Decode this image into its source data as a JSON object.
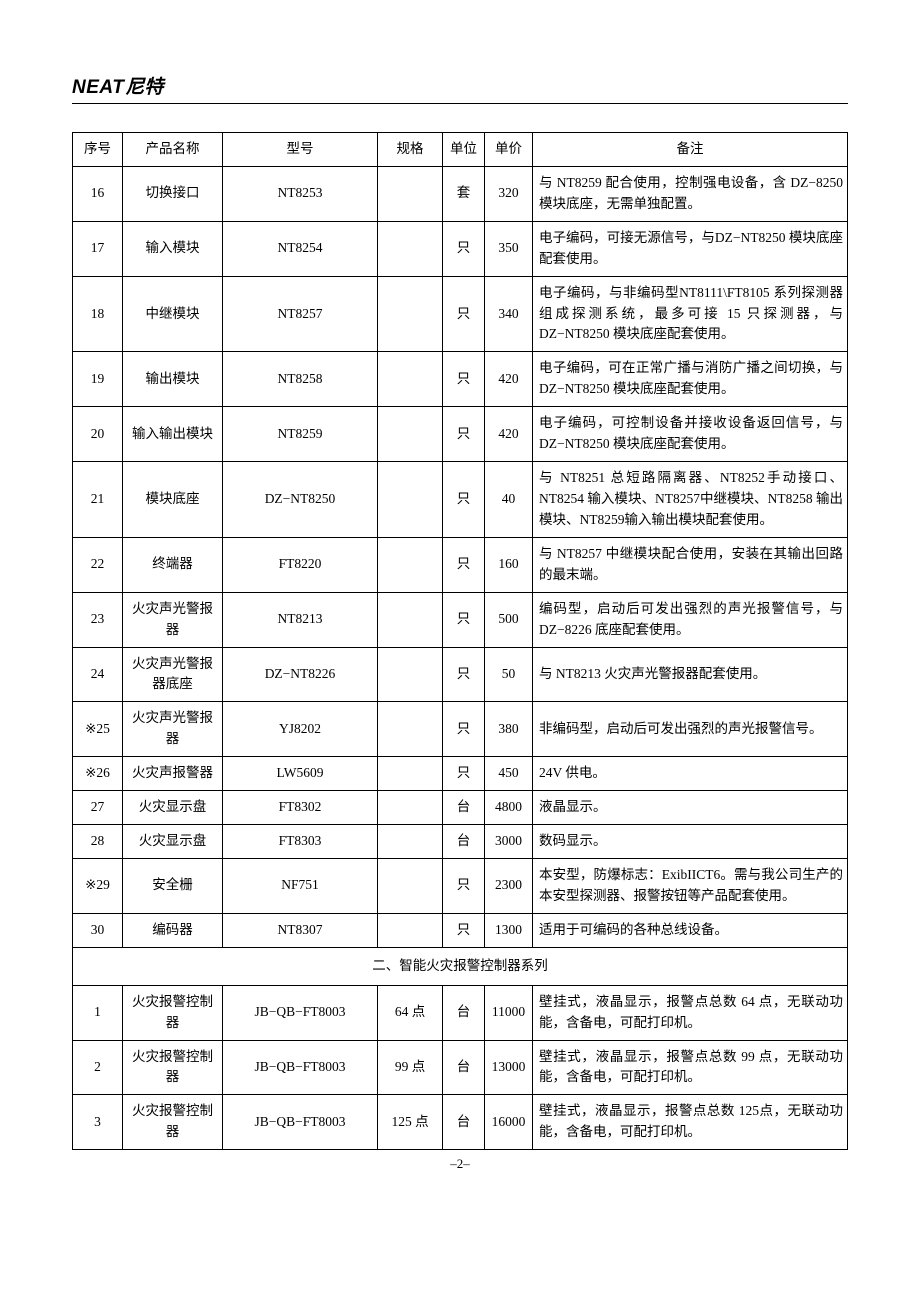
{
  "logo": {
    "en": "NEAT",
    "cn": "尼特"
  },
  "page_number": "–2–",
  "headers": {
    "seq": "序号",
    "name": "产品名称",
    "model": "型号",
    "spec": "规格",
    "unit": "单位",
    "price": "单价",
    "remark": "备注"
  },
  "section_title": "二、智能火灾报警控制器系列",
  "rows_a": [
    {
      "seq": "16",
      "name": "切换接口",
      "model": "NT8253",
      "spec": "",
      "unit": "套",
      "price": "320",
      "remark": "与 NT8259 配合使用，控制强电设备，含 DZ−8250 模块底座，无需单独配置。"
    },
    {
      "seq": "17",
      "name": "输入模块",
      "model": "NT8254",
      "spec": "",
      "unit": "只",
      "price": "350",
      "remark": "电子编码，可接无源信号，与DZ−NT8250 模块底座配套使用。"
    },
    {
      "seq": "18",
      "name": "中继模块",
      "model": "NT8257",
      "spec": "",
      "unit": "只",
      "price": "340",
      "remark": "电子编码，与非编码型NT8111\\FT8105 系列探测器组成探测系统，最多可接 15 只探测器，与DZ−NT8250 模块底座配套使用。"
    },
    {
      "seq": "19",
      "name": "输出模块",
      "model": "NT8258",
      "spec": "",
      "unit": "只",
      "price": "420",
      "remark": "电子编码，可在正常广播与消防广播之间切换，与 DZ−NT8250 模块底座配套使用。"
    },
    {
      "seq": "20",
      "name": "输入输出模块",
      "model": "NT8259",
      "spec": "",
      "unit": "只",
      "price": "420",
      "remark": "电子编码，可控制设备并接收设备返回信号，与 DZ−NT8250 模块底座配套使用。"
    },
    {
      "seq": "21",
      "name": "模块底座",
      "model": "DZ−NT8250",
      "spec": "",
      "unit": "只",
      "price": "40",
      "remark": "与 NT8251 总短路隔离器、NT8252手动接口、NT8254 输入模块、NT8257中继模块、NT8258 输出模块、NT8259输入输出模块配套使用。"
    },
    {
      "seq": "22",
      "name": "终端器",
      "model": "FT8220",
      "spec": "",
      "unit": "只",
      "price": "160",
      "remark": "与 NT8257 中继模块配合使用，安装在其输出回路的最末端。"
    },
    {
      "seq": "23",
      "name": "火灾声光警报器",
      "model": "NT8213",
      "spec": "",
      "unit": "只",
      "price": "500",
      "remark": "编码型，启动后可发出强烈的声光报警信号，与 DZ−8226 底座配套使用。"
    },
    {
      "seq": "24",
      "name": "火灾声光警报器底座",
      "model": "DZ−NT8226",
      "spec": "",
      "unit": "只",
      "price": "50",
      "remark": "与 NT8213 火灾声光警报器配套使用。"
    },
    {
      "seq": "※25",
      "name": "火灾声光警报器",
      "model": "YJ8202",
      "spec": "",
      "unit": "只",
      "price": "380",
      "remark": "非编码型，启动后可发出强烈的声光报警信号。"
    },
    {
      "seq": "※26",
      "name": "火灾声报警器",
      "model": "LW5609",
      "spec": "",
      "unit": "只",
      "price": "450",
      "remark": "24V 供电。"
    },
    {
      "seq": "27",
      "name": "火灾显示盘",
      "model": "FT8302",
      "spec": "",
      "unit": "台",
      "price": "4800",
      "remark": "液晶显示。"
    },
    {
      "seq": "28",
      "name": "火灾显示盘",
      "model": "FT8303",
      "spec": "",
      "unit": "台",
      "price": "3000",
      "remark": "数码显示。"
    },
    {
      "seq": "※29",
      "name": "安全栅",
      "model": "NF751",
      "spec": "",
      "unit": "只",
      "price": "2300",
      "remark": "本安型，防爆标志：ExibIICT6。需与我公司生产的本安型探测器、报警按钮等产品配套使用。"
    },
    {
      "seq": "30",
      "name": "编码器",
      "model": "NT8307",
      "spec": "",
      "unit": "只",
      "price": "1300",
      "remark": "适用于可编码的各种总线设备。"
    }
  ],
  "rows_b": [
    {
      "seq": "1",
      "name": "火灾报警控制器",
      "model": "JB−QB−FT8003",
      "spec": "64 点",
      "unit": "台",
      "price": "11000",
      "remark": "壁挂式，液晶显示，报警点总数 64 点，无联动功能，含备电，可配打印机。"
    },
    {
      "seq": "2",
      "name": "火灾报警控制器",
      "model": "JB−QB−FT8003",
      "spec": "99 点",
      "unit": "台",
      "price": "13000",
      "remark": "壁挂式，液晶显示，报警点总数 99 点，无联动功能，含备电，可配打印机。"
    },
    {
      "seq": "3",
      "name": "火灾报警控制器",
      "model": "JB−QB−FT8003",
      "spec": "125 点",
      "unit": "台",
      "price": "16000",
      "remark": "壁挂式，液晶显示，报警点总数 125点，无联动功能，含备电，可配打印机。"
    }
  ]
}
